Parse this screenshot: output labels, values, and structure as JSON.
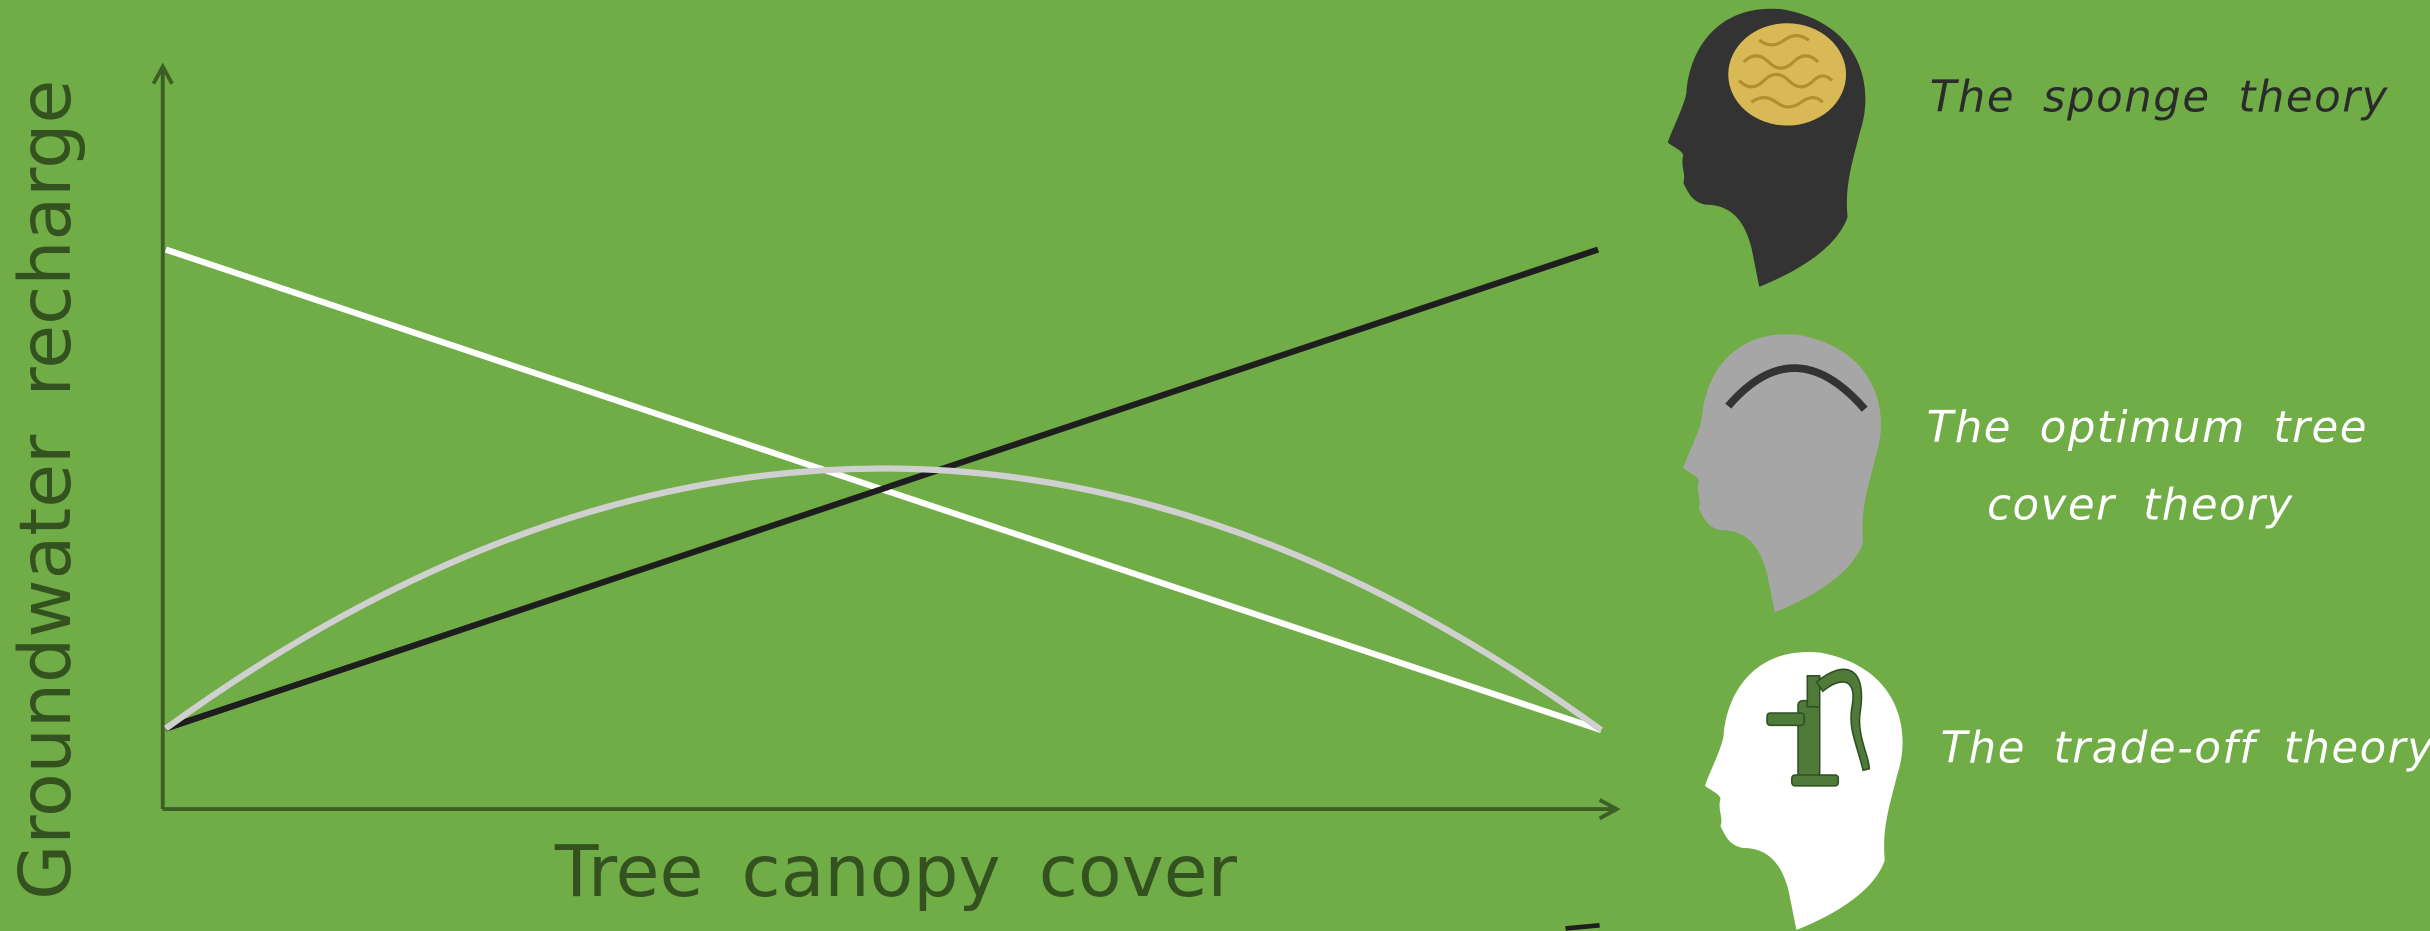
{
  "axes": {
    "y_label": "Groundwater recharge",
    "x_label": "Tree canopy cover"
  },
  "theories": [
    {
      "lines": [
        "The sponge theory"
      ]
    },
    {
      "lines": [
        "The optimum tree",
        "cover theory"
      ]
    },
    {
      "lines": [
        "The trade-off theory"
      ]
    }
  ]
}
